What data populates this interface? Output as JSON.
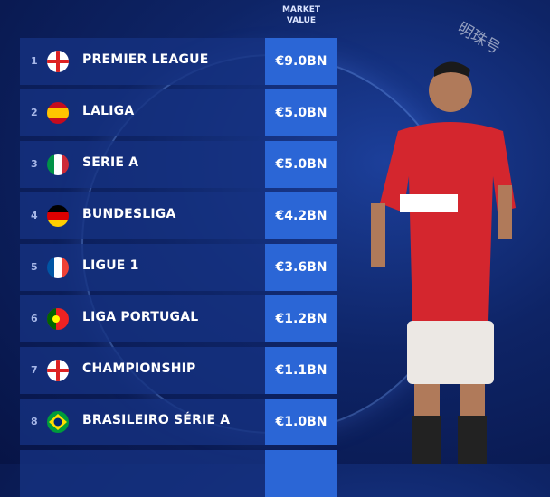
{
  "watermark": "明珠号",
  "chart_data": {
    "type": "table",
    "column_header": "MARKET VALUE",
    "header_lines": [
      "MARKET",
      "VALUE"
    ],
    "rows": [
      {
        "rank": "1",
        "flag": "england",
        "league": "PREMIER LEAGUE",
        "value": "€9.0BN"
      },
      {
        "rank": "2",
        "flag": "spain",
        "league": "LALIGA",
        "value": "€5.0BN"
      },
      {
        "rank": "3",
        "flag": "italy",
        "league": "SERIE A",
        "value": "€5.0BN"
      },
      {
        "rank": "4",
        "flag": "germany",
        "league": "BUNDESLIGA",
        "value": "€4.2BN"
      },
      {
        "rank": "5",
        "flag": "france",
        "league": "LIGUE 1",
        "value": "€3.6BN"
      },
      {
        "rank": "6",
        "flag": "portugal",
        "league": "LIGA PORTUGAL",
        "value": "€1.2BN"
      },
      {
        "rank": "7",
        "flag": "england",
        "league": "CHAMPIONSHIP",
        "value": "€1.1BN"
      },
      {
        "rank": "8",
        "flag": "brazil",
        "league": "BRASILEIRO SÉRIE A",
        "value": "€1.0BN"
      }
    ],
    "values_bn": [
      9.0,
      5.0,
      5.0,
      4.2,
      3.6,
      1.2,
      1.1,
      1.0
    ]
  },
  "colors": {
    "background": "#0e2466",
    "row": "#16328a",
    "value_box": "#2b66d6"
  }
}
